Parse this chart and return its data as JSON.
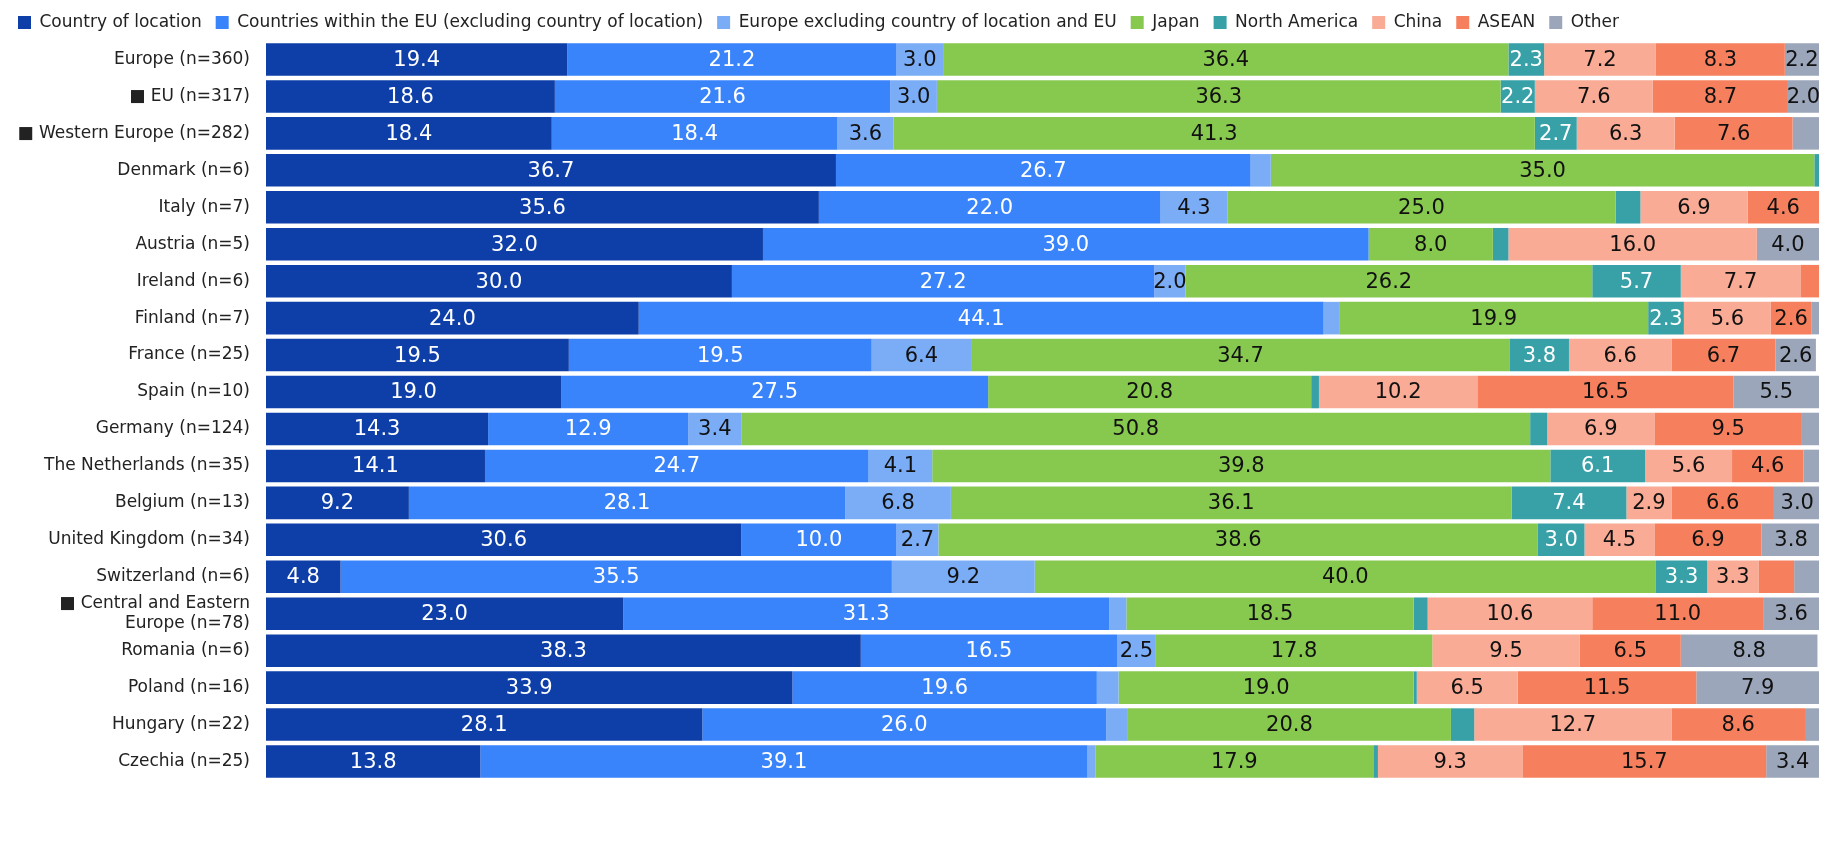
{
  "chart_data": {
    "type": "bar",
    "orientation": "horizontal",
    "stacked": true,
    "legend": "top left",
    "tick_labels": "y",
    "xlim": [
      0,
      100
    ],
    "categories": [
      "Europe (n=360)",
      "■ EU (n=317)",
      "■ Western Europe (n=282)",
      "Denmark (n=6)",
      "Italy (n=7)",
      "Austria (n=5)",
      "Ireland (n=6)",
      "Finland (n=7)",
      "France (n=25)",
      "Spain (n=10)",
      "Germany (n=124)",
      "The Netherlands (n=35)",
      "Belgium (n=13)",
      "United Kingdom (n=34)",
      "Switzerland (n=6)",
      "■ Central and Eastern Europe (n=78)",
      "Romania (n=6)",
      "Poland (n=16)",
      "Hungary (n=22)",
      "Czechia (n=25)"
    ],
    "series": [
      {
        "name": "Country of location",
        "color": "#0e3fa8",
        "values": [
          19.4,
          18.6,
          18.4,
          36.7,
          35.6,
          32.0,
          30.0,
          24.0,
          19.5,
          19.0,
          14.3,
          14.1,
          9.2,
          30.6,
          4.8,
          23.0,
          38.3,
          33.9,
          28.1,
          13.8
        ],
        "value_labels": [
          "19.4",
          "18.6",
          "18.4",
          "36.7",
          "35.6",
          "32.0",
          "30.0",
          "24.0",
          "19.5",
          "19.0",
          "14.3",
          "14.1",
          "9.2",
          "30.6",
          "4.8",
          "23.0",
          "38.3",
          "33.9",
          "28.1",
          "13.8"
        ]
      },
      {
        "name": "Countries within the EU (excluding country of location)",
        "color": "#3a84fb",
        "values": [
          21.2,
          21.6,
          18.4,
          26.7,
          22.0,
          39.0,
          27.2,
          44.1,
          19.5,
          27.5,
          12.9,
          24.7,
          28.1,
          10.0,
          35.5,
          31.3,
          16.5,
          19.6,
          26.0,
          39.1
        ],
        "value_labels": [
          "21.2",
          "21.6",
          "18.4",
          "26.7",
          "22.0",
          "39.0",
          "27.2",
          "44.1",
          "19.5",
          "27.5",
          "12.9",
          "24.7",
          "28.1",
          "10.0",
          "35.5",
          "31.3",
          "16.5",
          "19.6",
          "26.0",
          "39.1"
        ]
      },
      {
        "name": "Europe excluding country of location and EU",
        "color": "#7bacf6",
        "values": [
          3.0,
          3.0,
          3.6,
          1.3,
          4.3,
          0,
          2.0,
          1.0,
          6.4,
          0,
          3.4,
          4.1,
          6.8,
          2.7,
          9.2,
          1.1,
          2.5,
          1.4,
          1.4,
          0.5
        ],
        "value_labels": [
          "3.0",
          "3.0",
          "3.6",
          null,
          "4.3",
          null,
          "2.0",
          null,
          "6.4",
          null,
          "3.4",
          "4.1",
          "6.8",
          "2.7",
          "9.2",
          null,
          "2.5",
          null,
          null,
          null
        ]
      },
      {
        "name": "Japan",
        "color": "#87c84f",
        "values": [
          36.4,
          36.3,
          41.3,
          35.0,
          25.0,
          8.0,
          26.2,
          19.9,
          34.7,
          20.8,
          50.8,
          39.8,
          36.1,
          38.6,
          40.0,
          18.5,
          17.8,
          19.0,
          20.8,
          17.9
        ],
        "value_labels": [
          "36.4",
          "36.3",
          "41.3",
          "35.0",
          "25.0",
          "8.0",
          "26.2",
          "19.9",
          "34.7",
          "20.8",
          "50.8",
          "39.8",
          "36.1",
          "38.6",
          "40.0",
          "18.5",
          "17.8",
          "19.0",
          "20.8",
          "17.9"
        ]
      },
      {
        "name": "North America",
        "color": "#38a1a8",
        "values": [
          2.3,
          2.2,
          2.7,
          0.3,
          1.6,
          1.0,
          5.7,
          2.3,
          3.8,
          0.5,
          1.1,
          6.1,
          7.4,
          3.0,
          3.3,
          0.9,
          0,
          0.2,
          1.5,
          0.3
        ],
        "value_labels": [
          "2.3",
          "2.2",
          "2.7",
          null,
          null,
          null,
          "5.7",
          "2.3",
          "3.8",
          null,
          null,
          "6.1",
          "7.4",
          "3.0",
          "3.3",
          null,
          null,
          null,
          null,
          null
        ]
      },
      {
        "name": "China",
        "color": "#f9ab95",
        "values": [
          7.2,
          7.6,
          6.3,
          0,
          6.9,
          16.0,
          7.7,
          5.6,
          6.6,
          10.2,
          6.9,
          5.6,
          2.9,
          4.5,
          3.3,
          10.6,
          9.5,
          6.5,
          12.7,
          9.3
        ],
        "value_labels": [
          "7.2",
          "7.6",
          "6.3",
          null,
          "6.9",
          "16.0",
          "7.7",
          "5.6",
          "6.6",
          "10.2",
          "6.9",
          "5.6",
          "2.9",
          "4.5",
          "3.3",
          "10.6",
          "9.5",
          "6.5",
          "12.7",
          "9.3"
        ]
      },
      {
        "name": "ASEAN",
        "color": "#f6805e",
        "values": [
          8.3,
          8.7,
          7.6,
          0,
          4.6,
          0,
          1.2,
          2.6,
          6.7,
          16.5,
          9.5,
          4.6,
          6.6,
          6.9,
          2.3,
          11.0,
          6.5,
          11.5,
          8.6,
          15.7
        ],
        "value_labels": [
          "8.3",
          "8.7",
          "7.6",
          null,
          "4.6",
          null,
          null,
          "2.6",
          "6.7",
          "16.5",
          "9.5",
          "4.6",
          "6.6",
          "6.9",
          null,
          "11.0",
          "6.5",
          "11.5",
          "8.6",
          "15.7"
        ]
      },
      {
        "name": "Other",
        "color": "#9ba6ba",
        "values": [
          2.2,
          2.0,
          1.7,
          0,
          0,
          4.0,
          0,
          0.5,
          2.6,
          5.5,
          1.1,
          1.0,
          3.0,
          3.8,
          1.6,
          3.6,
          8.8,
          7.9,
          0.9,
          3.4
        ],
        "value_labels": [
          "2.2",
          "2.0",
          null,
          null,
          null,
          "4.0",
          null,
          null,
          "2.6",
          "5.5",
          null,
          null,
          "3.0",
          "3.8",
          null,
          "3.6",
          "8.8",
          "7.9",
          null,
          "3.4"
        ]
      }
    ]
  }
}
